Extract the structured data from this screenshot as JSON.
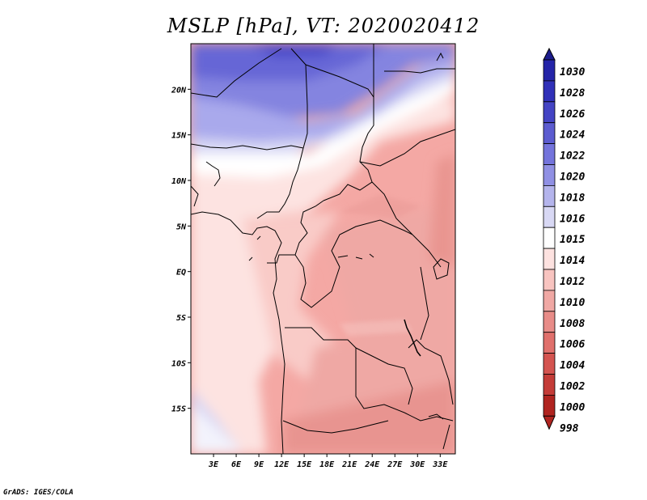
{
  "title": "MSLP [hPa], VT: 2020020412",
  "credit": "GrADS: IGES/COLA",
  "map": {
    "x_ticks": [
      "3E",
      "6E",
      "9E",
      "12E",
      "15E",
      "18E",
      "21E",
      "24E",
      "27E",
      "30E",
      "33E"
    ],
    "y_ticks": [
      "20N",
      "15N",
      "10N",
      "5N",
      "EQ",
      "5S",
      "10S",
      "15S"
    ],
    "lon_range": [
      0,
      35
    ],
    "lat_range": [
      -20,
      25
    ]
  },
  "colorbar": {
    "levels": [
      "1030",
      "1028",
      "1026",
      "1024",
      "1022",
      "1020",
      "1018",
      "1016",
      "1015",
      "1014",
      "1012",
      "1010",
      "1008",
      "1006",
      "1004",
      "1002",
      "1000",
      "998"
    ],
    "colors": [
      "#1c1c8c",
      "#2424a8",
      "#3030b8",
      "#4444c4",
      "#5c5cd0",
      "#7474dc",
      "#9090e4",
      "#b4b4ec",
      "#d8d8f4",
      "#ffffff",
      "#fde2e0",
      "#f8c4c0",
      "#f0a8a4",
      "#e88c88",
      "#e0706c",
      "#d45450",
      "#c43c38",
      "#b02420"
    ]
  }
}
